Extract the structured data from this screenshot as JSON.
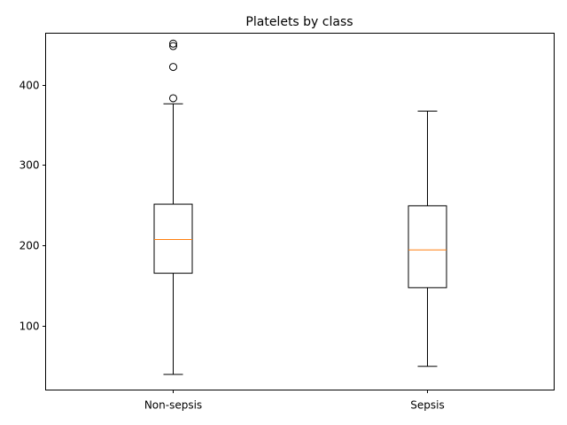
{
  "chart_data": {
    "type": "box",
    "title": "Platelets by class",
    "xlabel": "",
    "ylabel": "",
    "ylim": [
      19.5,
      464
    ],
    "yticks": [
      100,
      200,
      300,
      400
    ],
    "grid": false,
    "colors": {
      "box": "#000000",
      "median": "#ff7f0e",
      "background": "#ffffff"
    },
    "categories": [
      "Non-sepsis",
      "Sepsis"
    ],
    "boxes": [
      {
        "label": "Non-sepsis",
        "whisker_low": 39,
        "q1": 165,
        "median": 207,
        "q3": 251,
        "whisker_high": 376,
        "outliers": [
          383,
          422,
          448,
          451
        ]
      },
      {
        "label": "Sepsis",
        "whisker_low": 49,
        "q1": 147,
        "median": 194,
        "q3": 249,
        "whisker_high": 367,
        "outliers": []
      }
    ]
  }
}
